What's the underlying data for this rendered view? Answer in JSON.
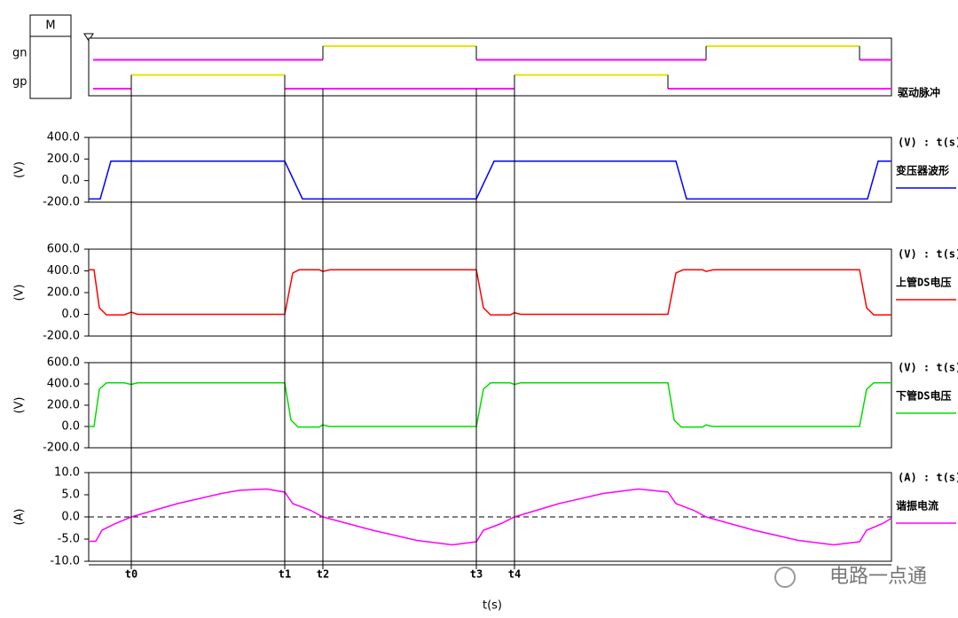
{
  "legend_box": "M",
  "xlabel": "t(s)",
  "watermark": "电路一点通",
  "xlim": [
    0,
    905
  ],
  "markers": [
    {
      "label": "t0",
      "x": 48
    },
    {
      "label": "t1",
      "x": 221
    },
    {
      "label": "t2",
      "x": 264
    },
    {
      "label": "t3",
      "x": 437
    },
    {
      "label": "t4",
      "x": 480
    }
  ],
  "chart_data": [
    {
      "type": "digital",
      "label": "驱动脉冲",
      "high_color": "#e6e600",
      "low_color": "#ff00ff",
      "ylim": [
        0,
        1
      ],
      "series": [
        {
          "name": "gn",
          "x": [
            0,
            264,
            437,
            696,
            869
          ],
          "values": [
            0,
            1,
            0,
            1,
            0
          ]
        },
        {
          "name": "gp",
          "x": [
            0,
            48,
            221,
            480,
            653
          ],
          "values": [
            0,
            1,
            0,
            1,
            0
          ]
        }
      ]
    },
    {
      "type": "line",
      "ylabel": "(V)",
      "unit_label": "(V) : t(s)",
      "ylim": [
        -200,
        400
      ],
      "yticks": [
        {
          "value": 400,
          "label": "400.0"
        },
        {
          "value": 200,
          "label": "200.0"
        },
        {
          "value": 0,
          "label": "0.0"
        },
        {
          "value": -200,
          "label": "-200.0"
        }
      ],
      "x": [
        0,
        13,
        25,
        221,
        241,
        437,
        457,
        662,
        674,
        878,
        890,
        905
      ],
      "series": [
        {
          "name": "变压器波形",
          "color": "#0000ff",
          "values": [
            -170,
            -170,
            180,
            180,
            -170,
            -170,
            180,
            180,
            -170,
            -170,
            180,
            180
          ]
        }
      ]
    },
    {
      "type": "line",
      "ylabel": "(V)",
      "unit_label": "(V) : t(s)",
      "ylim": [
        -200,
        600
      ],
      "yticks": [
        {
          "value": 600,
          "label": "600.0"
        },
        {
          "value": 400,
          "label": "400.0"
        },
        {
          "value": 200,
          "label": "200.0"
        },
        {
          "value": 0,
          "label": "0.0"
        },
        {
          "value": -200,
          "label": "-200.0"
        }
      ],
      "x": [
        0,
        6,
        12,
        20,
        40,
        48,
        55,
        221,
        230,
        237,
        260,
        264,
        272,
        437,
        445,
        453,
        475,
        480,
        487,
        653,
        662,
        670,
        692,
        696,
        704,
        869,
        877,
        885,
        905
      ],
      "series": [
        {
          "name": "上管DS电压",
          "color": "#ff0000",
          "values": [
            410,
            410,
            60,
            -5,
            -5,
            20,
            0,
            0,
            380,
            410,
            410,
            395,
            410,
            410,
            60,
            -5,
            -5,
            15,
            0,
            0,
            380,
            410,
            410,
            395,
            410,
            410,
            60,
            -5,
            -5
          ]
        }
      ]
    },
    {
      "type": "line",
      "ylabel": "(V)",
      "unit_label": "(V) : t(s)",
      "ylim": [
        -200,
        600
      ],
      "yticks": [
        {
          "value": 600,
          "label": "600.0"
        },
        {
          "value": 400,
          "label": "400.0"
        },
        {
          "value": 200,
          "label": "200.0"
        },
        {
          "value": 0,
          "label": "0.0"
        },
        {
          "value": -200,
          "label": "-200.0"
        }
      ],
      "x": [
        0,
        6,
        12,
        20,
        40,
        48,
        55,
        221,
        228,
        236,
        260,
        264,
        271,
        437,
        445,
        453,
        475,
        480,
        487,
        653,
        660,
        668,
        692,
        696,
        703,
        869,
        877,
        885,
        905
      ],
      "series": [
        {
          "name": "下管DS电压",
          "color": "#00dd00",
          "values": [
            0,
            0,
            350,
            410,
            410,
            395,
            410,
            410,
            60,
            -5,
            -5,
            15,
            0,
            0,
            350,
            410,
            410,
            395,
            410,
            410,
            60,
            -5,
            -5,
            15,
            0,
            0,
            350,
            410,
            410
          ]
        }
      ]
    },
    {
      "type": "line",
      "ylabel": "(A)",
      "unit_label": "(A) : t(s)",
      "ylim": [
        -10,
        10
      ],
      "zero_line": 0,
      "yticks": [
        {
          "value": 10,
          "label": "10.0"
        },
        {
          "value": 5,
          "label": "5.0"
        },
        {
          "value": 0,
          "label": "0.0"
        },
        {
          "value": -5,
          "label": "-5.0"
        },
        {
          "value": -10,
          "label": "-10.0"
        }
      ],
      "x": [
        0,
        8,
        15,
        30,
        48,
        100,
        150,
        170,
        200,
        221,
        230,
        250,
        264,
        320,
        370,
        410,
        437,
        445,
        465,
        480,
        530,
        580,
        620,
        653,
        662,
        682,
        696,
        750,
        800,
        840,
        869,
        877,
        895,
        905
      ],
      "series": [
        {
          "name": "谐振电流",
          "color": "#ff00ff",
          "values": [
            -5.5,
            -5.5,
            -3,
            -1.5,
            0,
            3,
            5.3,
            6,
            6.3,
            5.6,
            3,
            1.5,
            0,
            -3,
            -5.3,
            -6.3,
            -5.6,
            -3,
            -1.5,
            0,
            3,
            5.3,
            6.3,
            5.6,
            3,
            1.5,
            0,
            -3,
            -5.3,
            -6.3,
            -5.6,
            -3,
            -1.5,
            -0.3
          ]
        }
      ]
    }
  ]
}
